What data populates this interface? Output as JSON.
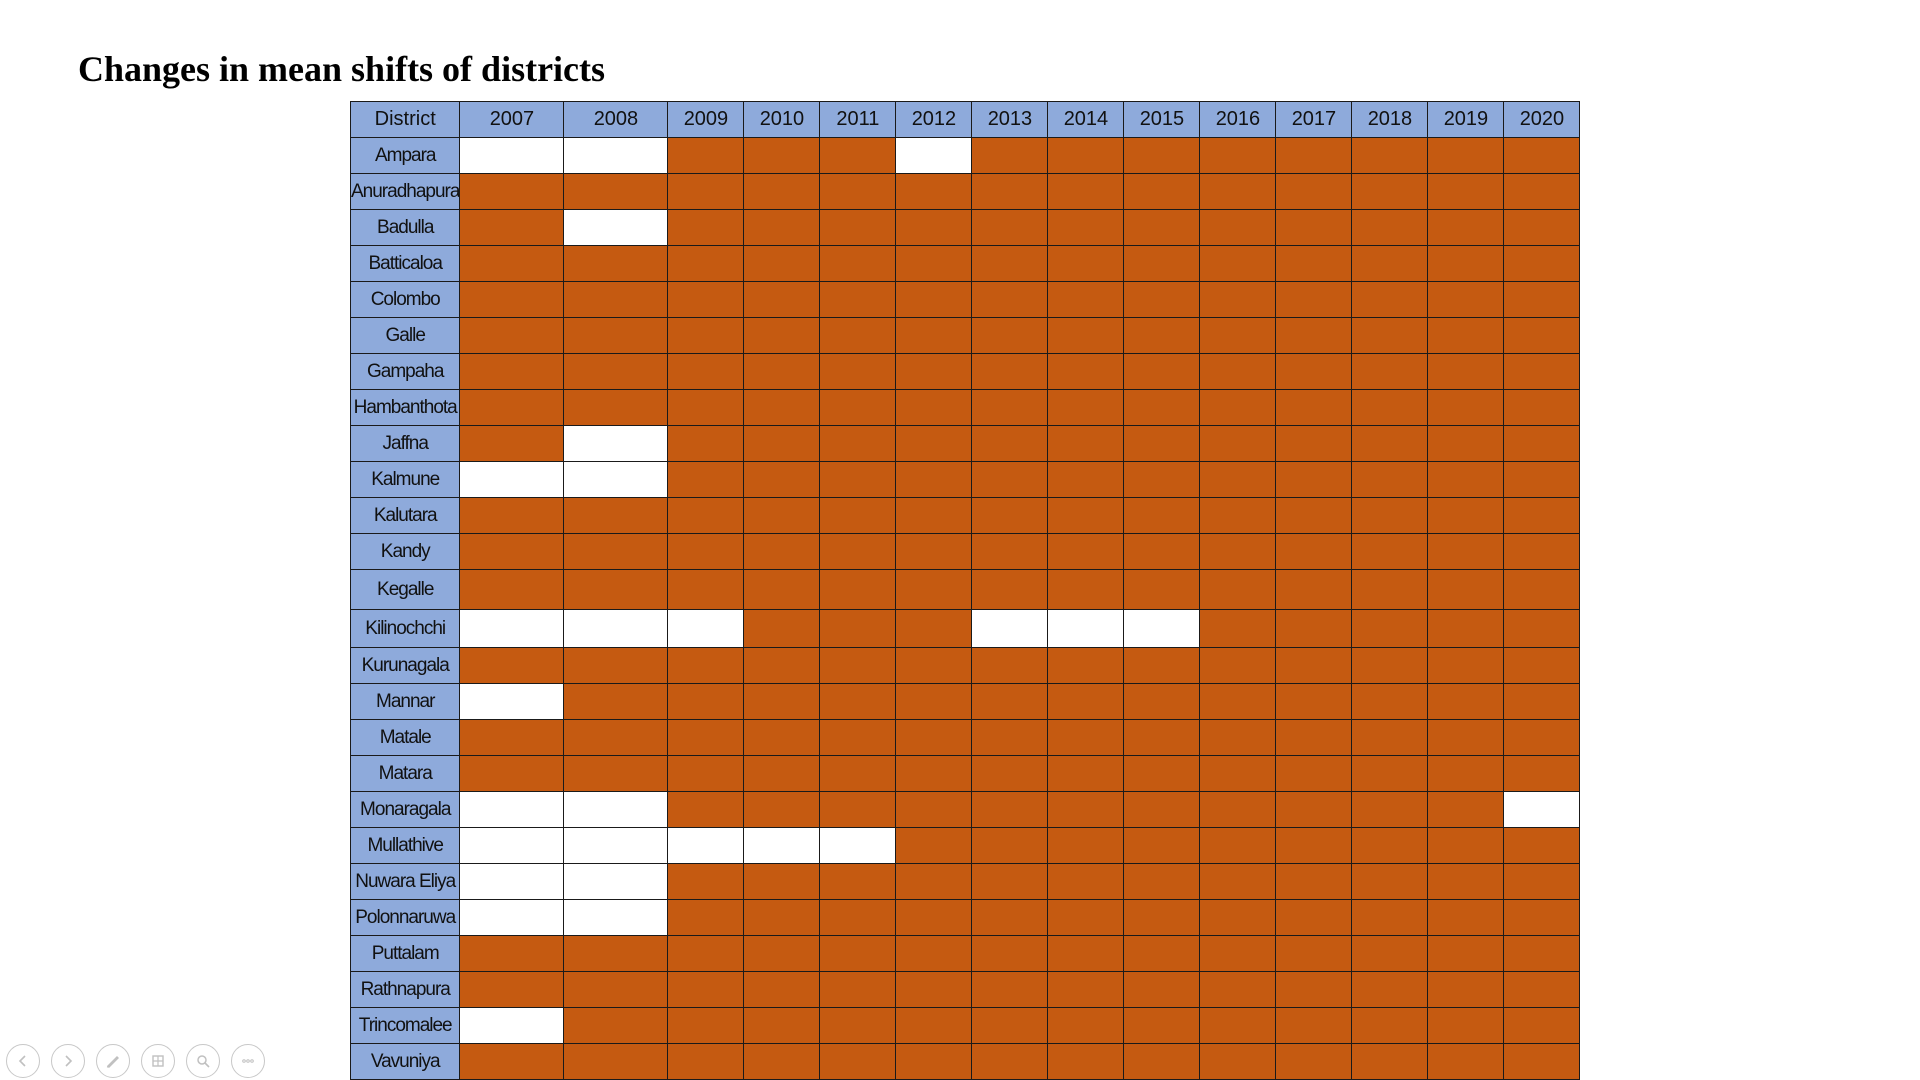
{
  "slide": {
    "title": "Changes in mean shifts of districts"
  },
  "colors": {
    "header_fill": "#8eaadb",
    "shift_fill": "#c55a11",
    "no_shift_fill": "#ffffff"
  },
  "chart_data": {
    "type": "table",
    "title": "Changes in mean shifts of districts",
    "header": [
      "District",
      "2007",
      "2008",
      "2009",
      "2010",
      "2011",
      "2012",
      "2013",
      "2014",
      "2015",
      "2016",
      "2017",
      "2018",
      "2019",
      "2020"
    ],
    "legend_note": "",
    "rows": [
      {
        "district": "Ampara",
        "white": [
          "2007",
          "2008",
          "2012"
        ]
      },
      {
        "district": "Anuradhapura",
        "white": []
      },
      {
        "district": "Badulla",
        "white": [
          "2008"
        ]
      },
      {
        "district": "Batticaloa",
        "white": []
      },
      {
        "district": "Colombo",
        "white": []
      },
      {
        "district": "Galle",
        "white": []
      },
      {
        "district": "Gampaha",
        "white": []
      },
      {
        "district": "Hambanthota",
        "white": []
      },
      {
        "district": "Jaffna",
        "white": [
          "2008"
        ]
      },
      {
        "district": "Kalmune",
        "white": [
          "2007",
          "2008"
        ]
      },
      {
        "district": "Kalutara",
        "white": []
      },
      {
        "district": "Kandy",
        "white": []
      },
      {
        "district": "Kegalle",
        "white": []
      },
      {
        "district": "Kilinochchi",
        "white": [
          "2007",
          "2008",
          "2009",
          "2013",
          "2014",
          "2015"
        ]
      },
      {
        "district": "Kurunagala",
        "white": []
      },
      {
        "district": "Mannar",
        "white": [
          "2007"
        ]
      },
      {
        "district": "Matale",
        "white": []
      },
      {
        "district": "Matara",
        "white": []
      },
      {
        "district": "Monaragala",
        "white": [
          "2007",
          "2008",
          "2020"
        ]
      },
      {
        "district": "Mullathive",
        "white": [
          "2007",
          "2008",
          "2009",
          "2010",
          "2011"
        ]
      },
      {
        "district": "Nuwara Eliya",
        "white": [
          "2007",
          "2008"
        ]
      },
      {
        "district": "Polonnaruwa",
        "white": [
          "2007",
          "2008"
        ]
      },
      {
        "district": "Puttalam",
        "white": []
      },
      {
        "district": "Rathnapura",
        "white": []
      },
      {
        "district": "Trincomalee",
        "white": [
          "2007"
        ]
      },
      {
        "district": "Vavuniya",
        "white": []
      }
    ]
  },
  "nav": [
    {
      "name": "previous-slide-icon"
    },
    {
      "name": "next-slide-icon"
    },
    {
      "name": "pen-icon"
    },
    {
      "name": "slides-grid-icon"
    },
    {
      "name": "zoom-icon"
    },
    {
      "name": "more-options-icon"
    }
  ]
}
